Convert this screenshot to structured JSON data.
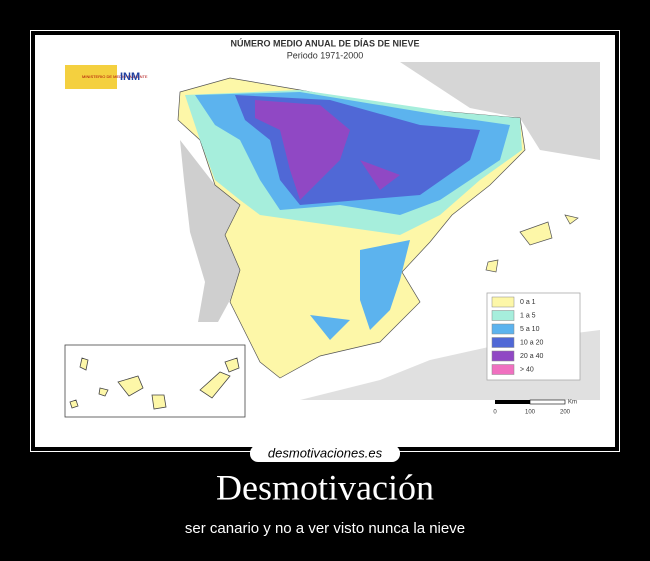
{
  "map": {
    "title": "NÚMERO MEDIO ANUAL DE DÍAS DE NIEVE",
    "subtitle": "Periodo 1971-2000",
    "logo": {
      "ministry": "MINISTERIO DE MEDIO AMBIENTE",
      "agency": "INM"
    },
    "legend": [
      {
        "label": "0 a 1",
        "color": "#fdf7a8"
      },
      {
        "label": "1 a 5",
        "color": "#a6eedc"
      },
      {
        "label": "5 a 10",
        "color": "#5cb3ee"
      },
      {
        "label": "10 a 20",
        "color": "#5068d6"
      },
      {
        "label": "20 a 40",
        "color": "#9048c4"
      },
      {
        "label": "> 40",
        "color": "#f070c0"
      }
    ],
    "scale": {
      "unit": "Km",
      "ticks": [
        "0",
        "100",
        "200"
      ]
    }
  },
  "watermark": "desmotivaciones.es",
  "poster": {
    "title": "Desmotivación",
    "caption": "ser canario y no a ver visto nunca la nieve"
  }
}
